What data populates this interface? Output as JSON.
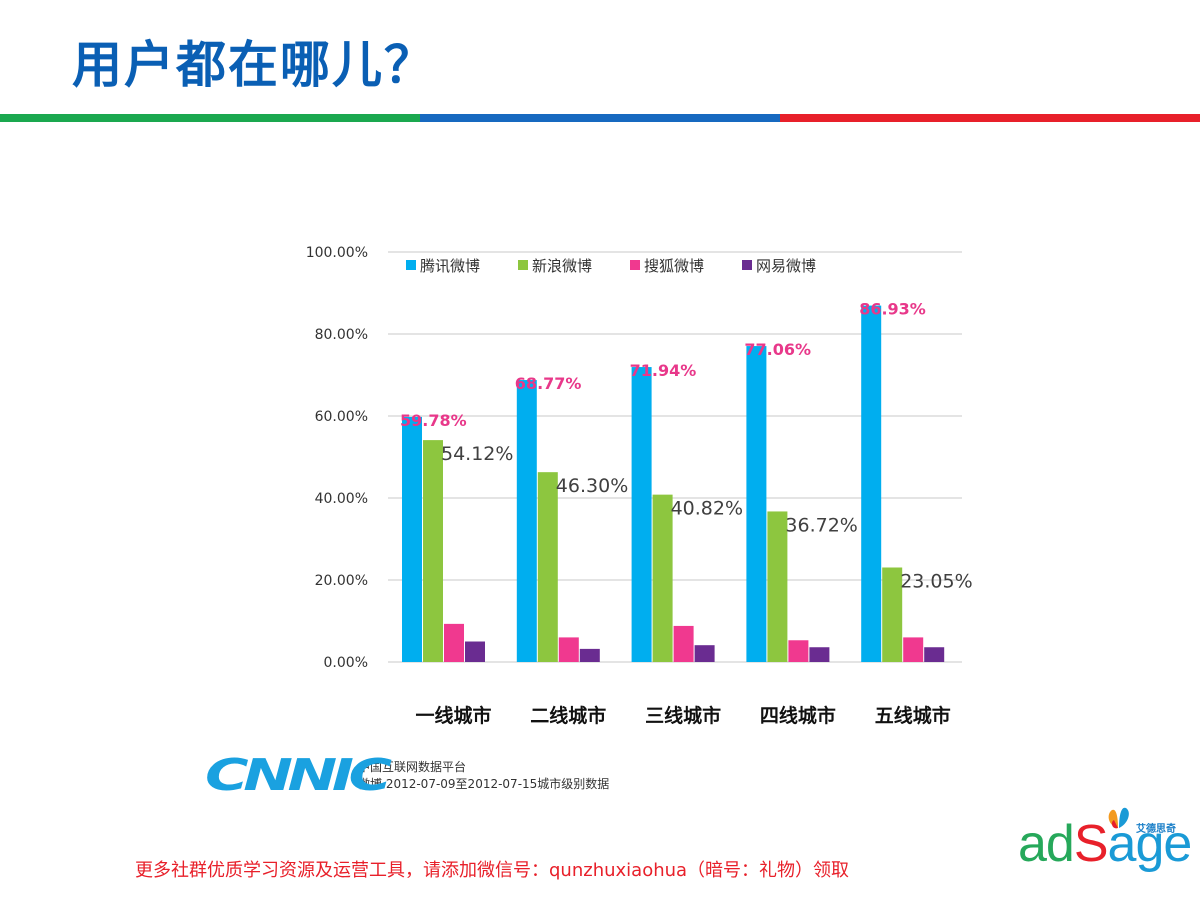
{
  "title": "用户都在哪儿？",
  "rule_colors": [
    "#1aa84f",
    "#1769c0",
    "#e8202a"
  ],
  "chart_data": {
    "type": "bar",
    "categories": [
      "一线城市",
      "二线城市",
      "三线城市",
      "四线城市",
      "五线城市"
    ],
    "series": [
      {
        "name": "腾讯微博",
        "color": "#00aeef",
        "values": [
          59.78,
          68.77,
          71.94,
          77.06,
          86.93
        ],
        "labels": [
          "59.78%",
          "68.77%",
          "71.94%",
          "77.06%",
          "86.93%"
        ]
      },
      {
        "name": "新浪微博",
        "color": "#8dc63f",
        "values": [
          54.12,
          46.3,
          40.82,
          36.72,
          23.05
        ],
        "labels": [
          "54.12%",
          "46.30%",
          "40.82%",
          "36.72%",
          "23.05%"
        ]
      },
      {
        "name": "搜狐微博",
        "color": "#f0398f",
        "values": [
          9.3,
          6.0,
          8.8,
          5.3,
          6.0
        ]
      },
      {
        "name": "网易微博",
        "color": "#6a2c91",
        "values": [
          5.0,
          3.2,
          4.1,
          3.6,
          3.6
        ]
      }
    ],
    "y_ticks": [
      "0.00%",
      "20.00%",
      "40.00%",
      "60.00%",
      "80.00%",
      "100.00%"
    ],
    "ylim": [
      0,
      100
    ],
    "grid": true,
    "legend_position": "top",
    "label_color_tencent": "#e8388a",
    "label_color_sina": "#404040"
  },
  "source": {
    "logo": "CNNIC",
    "line1": "中国互联网数据平台",
    "line2": "微博 2012-07-09至2012-07-15城市级别数据"
  },
  "footer": "更多社群优质学习资源及运营工具，请添加微信号：qunzhuxiaohua（暗号：礼物）领取",
  "brand": {
    "word_ad": "ad",
    "word_s": "S",
    "word_age": "age",
    "cn": "艾德思奇"
  }
}
